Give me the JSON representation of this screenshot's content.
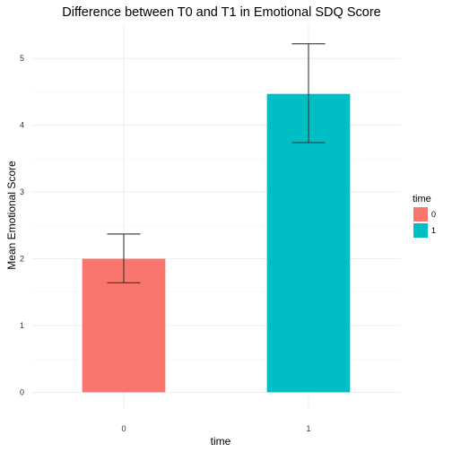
{
  "chart_data": {
    "type": "bar",
    "title": "Difference between T0 and T1 in Emotional SDQ Score",
    "xlabel": "time",
    "ylabel": "Mean Emotional Score",
    "categories": [
      "0",
      "1"
    ],
    "values": [
      2.0,
      4.47
    ],
    "error_bars": [
      {
        "lower": 1.64,
        "upper": 2.37
      },
      {
        "lower": 3.74,
        "upper": 5.22
      }
    ],
    "colors": [
      "#F8766D",
      "#00BFC4"
    ],
    "ylim": [
      -0.25,
      5.5
    ],
    "yticks": [
      0,
      1,
      2,
      3,
      4,
      5
    ],
    "grid": true,
    "legend": {
      "title": "time",
      "position": "right",
      "entries": [
        {
          "label": "0",
          "color": "#F8766D"
        },
        {
          "label": "1",
          "color": "#00BFC4"
        }
      ]
    }
  }
}
